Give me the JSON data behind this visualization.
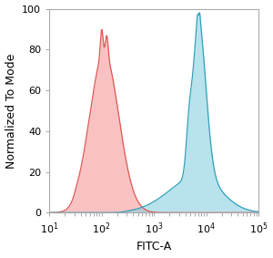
{
  "xlabel": "FITC-A",
  "ylabel": "Normalized To Mode",
  "ylim": [
    0,
    100
  ],
  "yticks": [
    0,
    20,
    40,
    60,
    80,
    100
  ],
  "red_fill_color": "#F59090",
  "red_edge_color": "#E05555",
  "blue_fill_color": "#7FCCDD",
  "blue_edge_color": "#30A0B8",
  "background_color": "#ffffff",
  "axis_bg_color": "#ffffff",
  "font_size_label": 9,
  "font_size_tick": 8
}
